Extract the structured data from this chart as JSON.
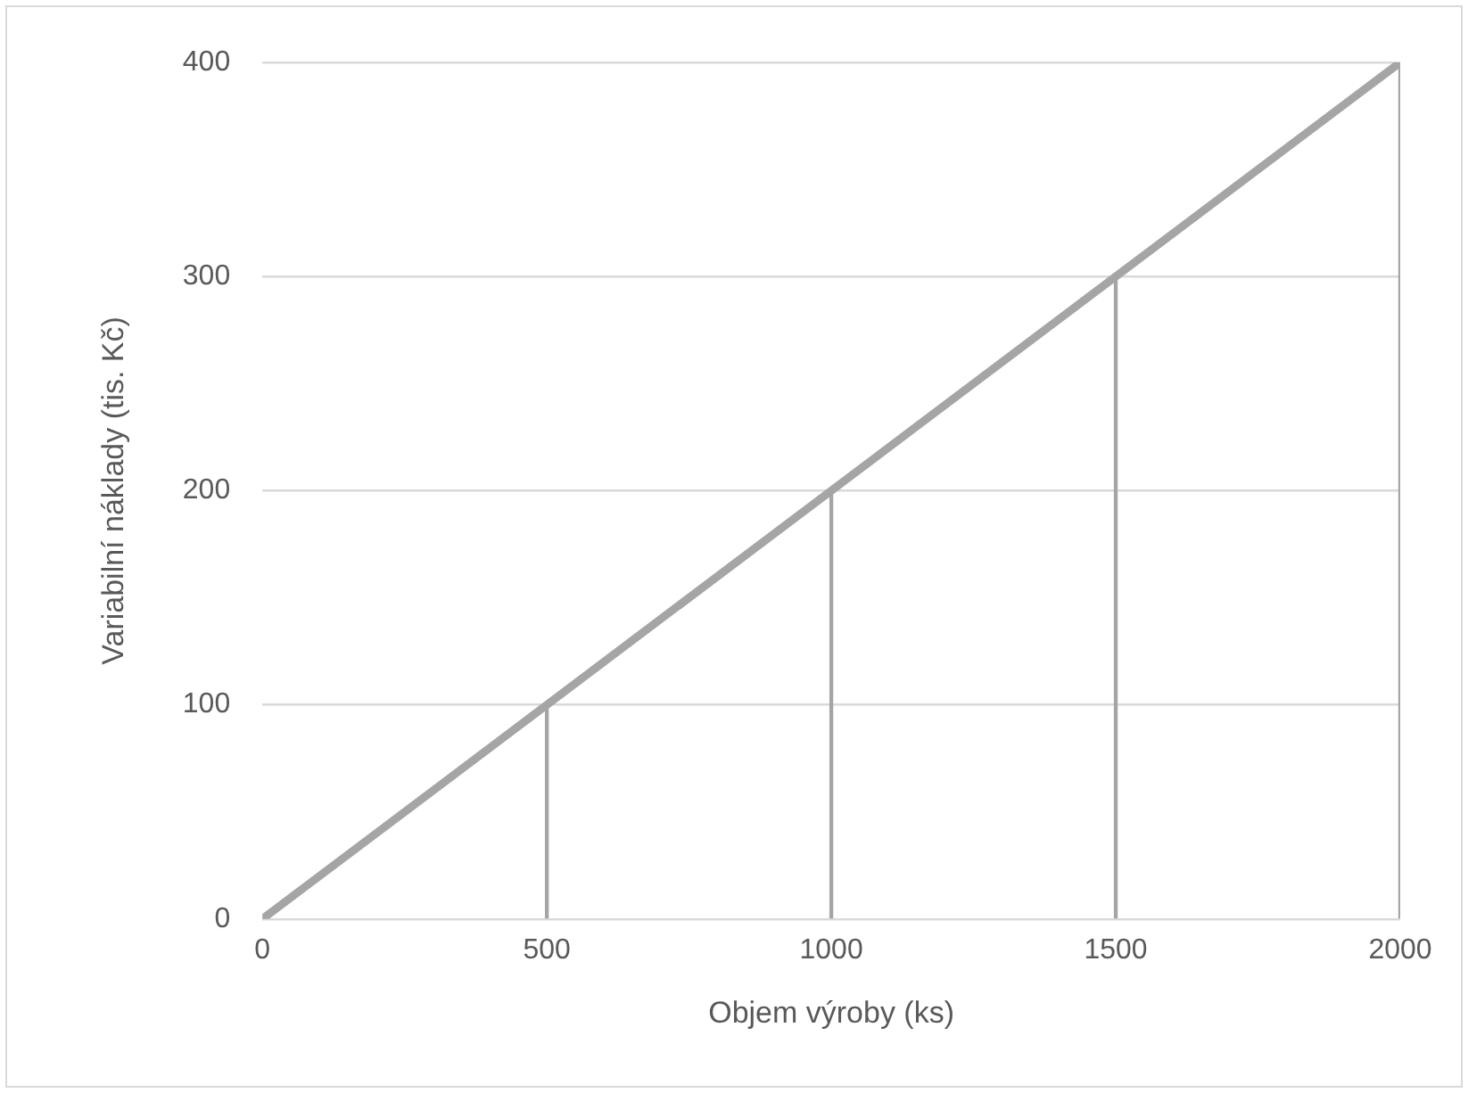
{
  "chart_data": {
    "type": "line",
    "xlabel": "Objem výroby (ks)",
    "ylabel": "Variabilní náklady (tis. Kč)",
    "x": [
      0,
      500,
      1000,
      1500,
      2000
    ],
    "series": [
      {
        "color": "#a5a5a5",
        "values": [
          0,
          100,
          200,
          300,
          400
        ]
      },
      {
        "type": "bar",
        "color": "#a5a5a5",
        "x": [
          500,
          1000,
          1500,
          2000
        ],
        "values": [
          100,
          200,
          300,
          400
        ]
      }
    ],
    "xlim": [
      0,
      2000
    ],
    "xticks": [
      0,
      500,
      1000,
      1500,
      2000
    ],
    "ylim": [
      0,
      400
    ],
    "yticks": [
      0,
      100,
      200,
      300,
      400
    ],
    "grid": "y",
    "legend": false,
    "marker": "none",
    "line_style": "solid"
  }
}
